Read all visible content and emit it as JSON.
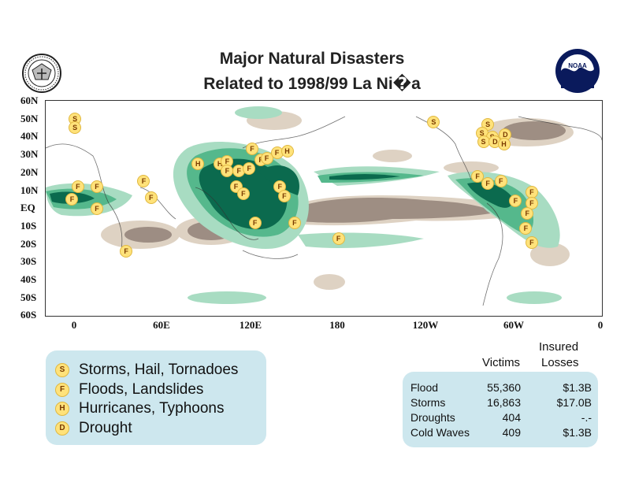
{
  "title": {
    "line1": "Major Natural Disasters",
    "line2": "Related to 1998/99 La Ni�a"
  },
  "logos": {
    "left": "Department of Commerce seal",
    "right": "NOAA"
  },
  "map": {
    "colors": {
      "wet_light": "#a8dcc2",
      "wet_mid": "#55b88c",
      "wet_dark": "#0b6a4e",
      "dry_light": "#ddd0c0",
      "dry_dark": "#9a8a80",
      "marker_fill": "#ffe27a"
    },
    "y_labels": [
      "60N",
      "50N",
      "40N",
      "30N",
      "20N",
      "10N",
      "EQ",
      "10S",
      "20S",
      "30S",
      "40S",
      "50S",
      "60S"
    ],
    "x_labels": [
      "0",
      "60E",
      "120E",
      "180",
      "120W",
      "60W",
      "0"
    ],
    "markers": [
      {
        "type": "S",
        "lon": 0,
        "lat": 50
      },
      {
        "type": "S",
        "lon": 0,
        "lat": 45
      },
      {
        "type": "F",
        "lon": 2,
        "lat": 12
      },
      {
        "type": "F",
        "lon": -2,
        "lat": 5
      },
      {
        "type": "F",
        "lon": 15,
        "lat": 12
      },
      {
        "type": "F",
        "lon": 15,
        "lat": 0
      },
      {
        "type": "F",
        "lon": 47,
        "lat": 15
      },
      {
        "type": "F",
        "lon": 52,
        "lat": 6
      },
      {
        "type": "F",
        "lon": 35,
        "lat": -24
      },
      {
        "type": "H",
        "lon": 84,
        "lat": 25
      },
      {
        "type": "H",
        "lon": 99,
        "lat": 25
      },
      {
        "type": "F",
        "lon": 104,
        "lat": 26
      },
      {
        "type": "F",
        "lon": 104,
        "lat": 21
      },
      {
        "type": "F",
        "lon": 112,
        "lat": 21
      },
      {
        "type": "F",
        "lon": 119,
        "lat": 22
      },
      {
        "type": "F",
        "lon": 127,
        "lat": 27
      },
      {
        "type": "F",
        "lon": 131,
        "lat": 28
      },
      {
        "type": "F",
        "lon": 121,
        "lat": 33
      },
      {
        "type": "F",
        "lon": 138,
        "lat": 31
      },
      {
        "type": "H",
        "lon": 145,
        "lat": 32
      },
      {
        "type": "F",
        "lon": 110,
        "lat": 12
      },
      {
        "type": "F",
        "lon": 115,
        "lat": 8
      },
      {
        "type": "F",
        "lon": 140,
        "lat": 12
      },
      {
        "type": "F",
        "lon": 143,
        "lat": 7
      },
      {
        "type": "F",
        "lon": 123,
        "lat": -8
      },
      {
        "type": "F",
        "lon": 150,
        "lat": -8
      },
      {
        "type": "F",
        "lon": 180,
        "lat": -17
      },
      {
        "type": "S",
        "lon": 245,
        "lat": 48
      },
      {
        "type": "S",
        "lon": 282,
        "lat": 47
      },
      {
        "type": "S",
        "lon": 278,
        "lat": 42
      },
      {
        "type": "S",
        "lon": 285,
        "lat": 40
      },
      {
        "type": "D",
        "lon": 294,
        "lat": 41
      },
      {
        "type": "S",
        "lon": 279,
        "lat": 37
      },
      {
        "type": "D",
        "lon": 287,
        "lat": 37
      },
      {
        "type": "H",
        "lon": 293,
        "lat": 36
      },
      {
        "type": "F",
        "lon": 275,
        "lat": 18
      },
      {
        "type": "F",
        "lon": 291,
        "lat": 15
      },
      {
        "type": "F",
        "lon": 282,
        "lat": 14
      },
      {
        "type": "F",
        "lon": 312,
        "lat": 9
      },
      {
        "type": "F",
        "lon": 301,
        "lat": 4
      },
      {
        "type": "F",
        "lon": 312,
        "lat": 3
      },
      {
        "type": "F",
        "lon": 309,
        "lat": -3
      },
      {
        "type": "F",
        "lon": 308,
        "lat": -11
      },
      {
        "type": "F",
        "lon": 312,
        "lat": -19
      }
    ]
  },
  "legend": {
    "items": [
      {
        "symbol": "S",
        "label": "Storms, Hail, Tornadoes"
      },
      {
        "symbol": "F",
        "label": "Floods, Landslides"
      },
      {
        "symbol": "H",
        "label": "Hurricanes, Typhoons"
      },
      {
        "symbol": "D",
        "label": "Drought"
      }
    ]
  },
  "stats": {
    "headers": {
      "victims": "Victims",
      "insured_line1": "Insured",
      "insured_line2": "Losses"
    },
    "rows": [
      {
        "label": "Flood",
        "victims": "55,360",
        "losses": "$1.3B"
      },
      {
        "label": "Storms",
        "victims": "16,863",
        "losses": "$17.0B"
      },
      {
        "label": "Droughts",
        "victims": "404",
        "losses": "-.-"
      },
      {
        "label": "Cold Waves",
        "victims": "409",
        "losses": "$1.3B"
      }
    ]
  }
}
